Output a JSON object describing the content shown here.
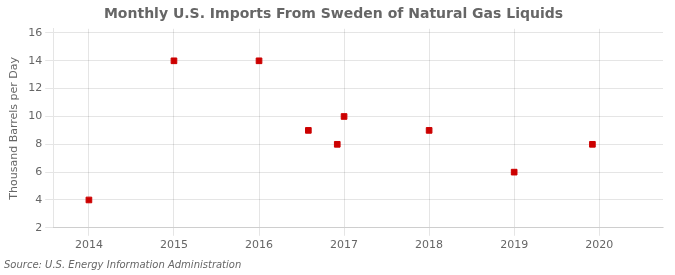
{
  "chart_data": {
    "type": "scatter",
    "title": "Monthly U.S. Imports From Sweden of Natural Gas Liquids",
    "ylabel": "Thousand Barrels per Day",
    "annotations": [
      "Source: U.S. Energy Information Administration"
    ],
    "x": [
      2014.0,
      2015.0,
      2016.0,
      2016.58,
      2016.92,
      2017.0,
      2018.0,
      2019.0,
      2019.92
    ],
    "values": [
      4,
      14,
      14,
      9,
      8,
      10,
      9,
      6,
      8
    ],
    "color": "#cc0000",
    "marker": "square",
    "xlim": [
      2013.58,
      2020.75
    ],
    "ylim": [
      2,
      16.3
    ],
    "xticks": [
      2014,
      2015,
      2016,
      2017,
      2018,
      2019,
      2020
    ],
    "yticks": [
      2,
      4,
      6,
      8,
      10,
      12,
      14,
      16
    ],
    "grid": true
  }
}
